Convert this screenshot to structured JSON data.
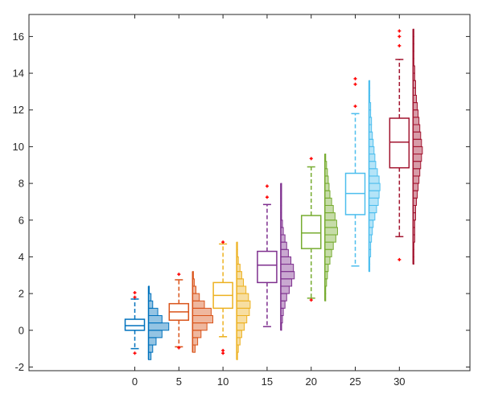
{
  "chart_data": {
    "type": "box",
    "title": "",
    "xlabel": "",
    "ylabel": "",
    "xlim": [
      -12,
      38
    ],
    "ylim": [
      -2.2,
      17.2
    ],
    "xticks": [
      0,
      5,
      10,
      15,
      20,
      25,
      30
    ],
    "yticks": [
      -2,
      0,
      2,
      4,
      6,
      8,
      10,
      12,
      14,
      16
    ],
    "grid": false,
    "legend": "none",
    "outlier_color": "#ff0000",
    "series": [
      {
        "x": 0,
        "color": "#0072bd",
        "whisker_low": -1.0,
        "q1": 0.0,
        "median": 0.25,
        "q3": 0.6,
        "whisker_high": 1.7,
        "outliers": [
          2.05,
          1.8,
          -1.25
        ],
        "hist": {
          "start": -1.6,
          "step": 0.4,
          "counts": [
            3,
            5,
            9,
            16,
            24,
            16,
            11,
            5,
            3,
            1
          ]
        }
      },
      {
        "x": 5,
        "color": "#d95319",
        "whisker_low": -0.9,
        "q1": 0.55,
        "median": 1.0,
        "q3": 1.45,
        "whisker_high": 2.75,
        "outliers": [
          3.05,
          -0.95
        ],
        "hist": {
          "start": -1.2,
          "step": 0.4,
          "counts": [
            3,
            6,
            10,
            17,
            24,
            22,
            14,
            8,
            4,
            2,
            1
          ]
        }
      },
      {
        "x": 10,
        "color": "#edb120",
        "whisker_low": -0.35,
        "q1": 1.2,
        "median": 1.9,
        "q3": 2.6,
        "whisker_high": 4.7,
        "outliers": [
          4.8,
          -1.1,
          -1.25
        ],
        "hist": {
          "start": -1.6,
          "step": 0.4,
          "counts": [
            1,
            2,
            4,
            6,
            9,
            12,
            15,
            16,
            14,
            11,
            8,
            6,
            4,
            2,
            1,
            1
          ]
        }
      },
      {
        "x": 15,
        "color": "#7e2f8e",
        "whisker_low": 0.2,
        "q1": 2.6,
        "median": 3.55,
        "q3": 4.3,
        "whisker_high": 6.85,
        "outliers": [
          7.85,
          7.25
        ],
        "hist": {
          "start": 0.0,
          "step": 0.4,
          "counts": [
            1,
            2,
            3,
            5,
            7,
            10,
            13,
            16,
            15,
            12,
            9,
            7,
            5,
            3,
            2,
            1,
            1,
            1,
            1,
            1
          ]
        }
      },
      {
        "x": 20,
        "color": "#77ac30",
        "whisker_low": 1.75,
        "q1": 4.45,
        "median": 5.3,
        "q3": 6.25,
        "whisker_high": 8.9,
        "outliers": [
          9.35,
          1.65
        ],
        "hist": {
          "start": 1.6,
          "step": 0.4,
          "counts": [
            1,
            1,
            2,
            3,
            4,
            6,
            8,
            10,
            13,
            15,
            14,
            12,
            10,
            8,
            6,
            5,
            4,
            3,
            2,
            1
          ]
        }
      },
      {
        "x": 25,
        "color": "#4dbeee",
        "whisker_low": 3.5,
        "q1": 6.3,
        "median": 7.45,
        "q3": 8.55,
        "whisker_high": 11.8,
        "outliers": [
          13.7,
          13.4,
          12.2
        ],
        "hist": {
          "start": 3.2,
          "step": 0.4,
          "counts": [
            1,
            1,
            2,
            2,
            3,
            4,
            5,
            7,
            9,
            11,
            12,
            13,
            12,
            10,
            8,
            7,
            6,
            5,
            4,
            3,
            3,
            2,
            2,
            1,
            1,
            1
          ]
        }
      },
      {
        "x": 30,
        "color": "#a2142f",
        "whisker_low": 5.1,
        "q1": 8.85,
        "median": 10.25,
        "q3": 11.55,
        "whisker_high": 14.75,
        "outliers": [
          16.3,
          16.0,
          15.5,
          3.85
        ],
        "hist": {
          "start": 3.6,
          "step": 0.4,
          "counts": [
            1,
            1,
            1,
            2,
            2,
            2,
            3,
            3,
            4,
            5,
            6,
            7,
            8,
            9,
            10,
            11,
            10,
            9,
            8,
            7,
            6,
            5,
            4,
            3,
            3,
            2,
            2,
            1,
            1,
            1,
            1,
            1
          ]
        }
      }
    ]
  }
}
